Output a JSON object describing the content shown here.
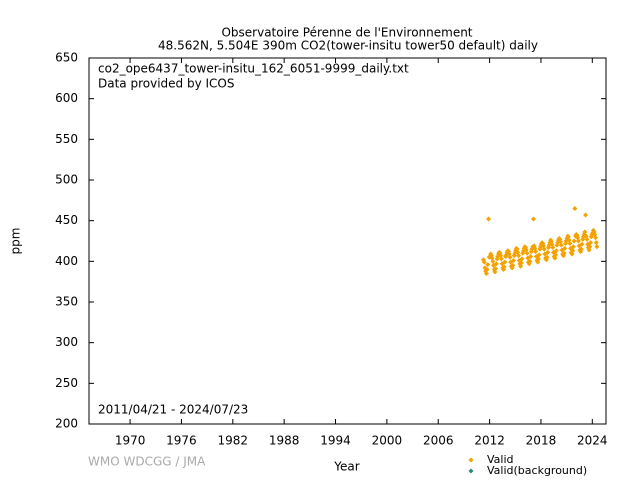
{
  "chart_data": {
    "type": "scatter",
    "title": "Observatoire Pérenne de l'Environnement",
    "subtitle": "48.562N, 5.504E 390m     CO2(tower-insitu tower50 default) daily",
    "annotations": [
      "co2_ope6437_tower-insitu_162_6051-9999_daily.txt",
      "Data provided by ICOS",
      "2011/04/21 - 2024/07/23"
    ],
    "credit": "WMO WDCGG / JMA",
    "x_label": "Year",
    "y_label": "ppm",
    "xlim": [
      1965.2,
      2025.6
    ],
    "xticks": [
      1970,
      1976,
      1982,
      1988,
      1994,
      2000,
      2006,
      2012,
      2018,
      2024
    ],
    "ylim": [
      200,
      650
    ],
    "yticks": [
      200,
      250,
      300,
      350,
      400,
      450,
      500,
      550,
      600,
      650
    ],
    "legend": [
      {
        "name": "Valid",
        "color": "#f5a200"
      },
      {
        "name": "Valid(background)",
        "color": "#2e8b77"
      }
    ],
    "x": [
      2011.29,
      2011.38,
      2011.46,
      2011.54,
      2011.63,
      2011.71,
      2011.79,
      2011.88,
      2011.96,
      2012.04,
      2012.13,
      2012.21,
      2012.29,
      2012.38,
      2012.46,
      2012.54,
      2012.63,
      2012.71,
      2012.79,
      2012.88,
      2012.96,
      2013.04,
      2013.13,
      2013.21,
      2013.29,
      2013.38,
      2013.46,
      2013.54,
      2013.63,
      2013.71,
      2013.79,
      2013.88,
      2013.96,
      2014.04,
      2014.13,
      2014.21,
      2014.29,
      2014.38,
      2014.46,
      2014.54,
      2014.63,
      2014.71,
      2014.79,
      2014.88,
      2014.96,
      2015.04,
      2015.13,
      2015.21,
      2015.29,
      2015.38,
      2015.46,
      2015.54,
      2015.63,
      2015.71,
      2015.79,
      2015.88,
      2015.96,
      2016.04,
      2016.13,
      2016.21,
      2016.29,
      2016.38,
      2016.46,
      2016.54,
      2016.63,
      2016.71,
      2016.79,
      2016.88,
      2016.96,
      2017.04,
      2017.13,
      2017.21,
      2017.29,
      2017.38,
      2017.46,
      2017.54,
      2017.63,
      2017.71,
      2017.79,
      2017.88,
      2017.96,
      2018.04,
      2018.13,
      2018.21,
      2018.29,
      2018.38,
      2018.46,
      2018.54,
      2018.63,
      2018.71,
      2018.79,
      2018.88,
      2018.96,
      2019.04,
      2019.13,
      2019.21,
      2019.29,
      2019.38,
      2019.46,
      2019.54,
      2019.63,
      2019.71,
      2019.79,
      2019.88,
      2019.96,
      2020.04,
      2020.13,
      2020.21,
      2020.29,
      2020.38,
      2020.46,
      2020.54,
      2020.63,
      2020.71,
      2020.79,
      2020.88,
      2020.96,
      2021.04,
      2021.13,
      2021.21,
      2021.29,
      2021.38,
      2021.46,
      2021.54,
      2021.63,
      2021.71,
      2021.79,
      2021.88,
      2021.96,
      2022.04,
      2022.13,
      2022.21,
      2022.29,
      2022.38,
      2022.46,
      2022.54,
      2022.63,
      2022.71,
      2022.79,
      2022.88,
      2022.96,
      2023.04,
      2023.13,
      2023.21,
      2023.29,
      2023.38,
      2023.46,
      2023.54,
      2023.63,
      2023.71,
      2023.79,
      2023.88,
      2023.96,
      2024.04,
      2024.13,
      2024.21,
      2024.29,
      2024.38,
      2024.46,
      2024.54
    ],
    "series": [
      {
        "name": "Valid",
        "color": "#f5a200",
        "values": [
          402,
          399,
          392,
          388,
          385,
          390,
          396,
          452,
          405,
          406,
          409,
          407,
          404,
          400,
          395,
          390,
          387,
          391,
          397,
          403,
          406,
          409,
          411,
          410,
          407,
          403,
          397,
          392,
          390,
          393,
          399,
          406,
          408,
          411,
          413,
          412,
          409,
          405,
          399,
          394,
          392,
          395,
          401,
          407,
          410,
          413,
          416,
          415,
          411,
          407,
          401,
          397,
          394,
          398,
          403,
          410,
          413,
          416,
          418,
          417,
          414,
          410,
          404,
          399,
          397,
          400,
          406,
          412,
          415,
          418,
          452,
          419,
          416,
          412,
          406,
          401,
          399,
          403,
          408,
          415,
          418,
          421,
          423,
          422,
          419,
          415,
          409,
          404,
          402,
          405,
          411,
          417,
          420,
          423,
          426,
          424,
          421,
          417,
          411,
          406,
          404,
          408,
          413,
          420,
          423,
          426,
          428,
          427,
          424,
          420,
          414,
          409,
          407,
          410,
          416,
          422,
          425,
          428,
          431,
          430,
          426,
          422,
          416,
          411,
          409,
          413,
          418,
          425,
          465,
          431,
          433,
          432,
          429,
          425,
          419,
          414,
          412,
          415,
          421,
          427,
          430,
          433,
          436,
          457,
          431,
          427,
          421,
          417,
          414,
          418,
          423,
          430,
          433,
          435,
          438,
          436,
          433,
          429,
          423,
          418
        ]
      }
    ]
  }
}
